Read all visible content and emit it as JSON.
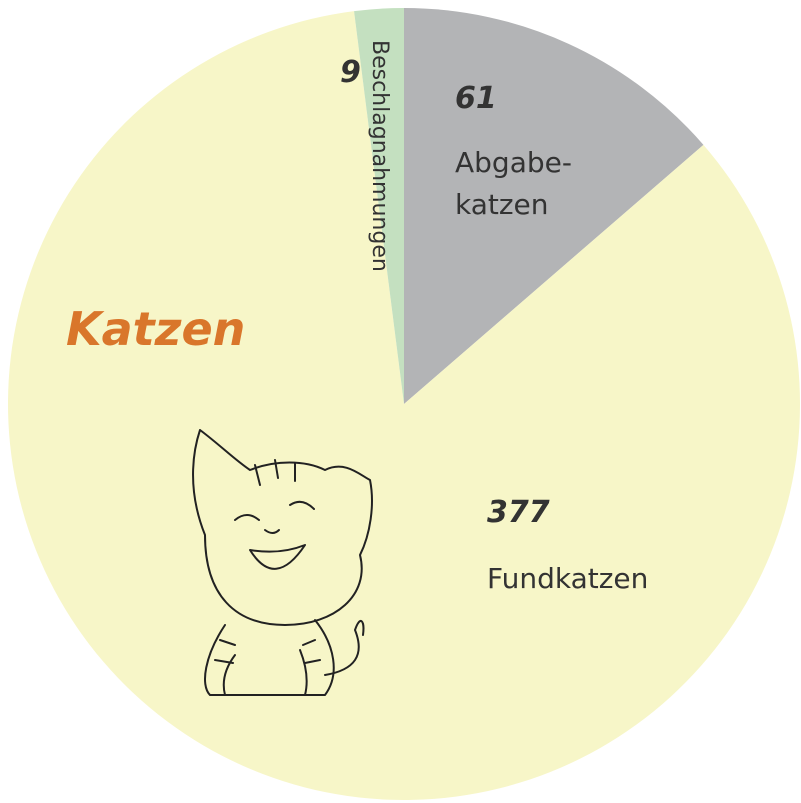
{
  "chart_data": {
    "type": "pie",
    "title": "Katzen",
    "categories": [
      "Abgabe-\nkatzen",
      "Fundkatzen",
      "Beschlagnahmungen"
    ],
    "values": [
      61,
      377,
      9
    ],
    "colors": [
      "#b3b4b6",
      "#f7f6c8",
      "#c4e0c0"
    ]
  }
}
